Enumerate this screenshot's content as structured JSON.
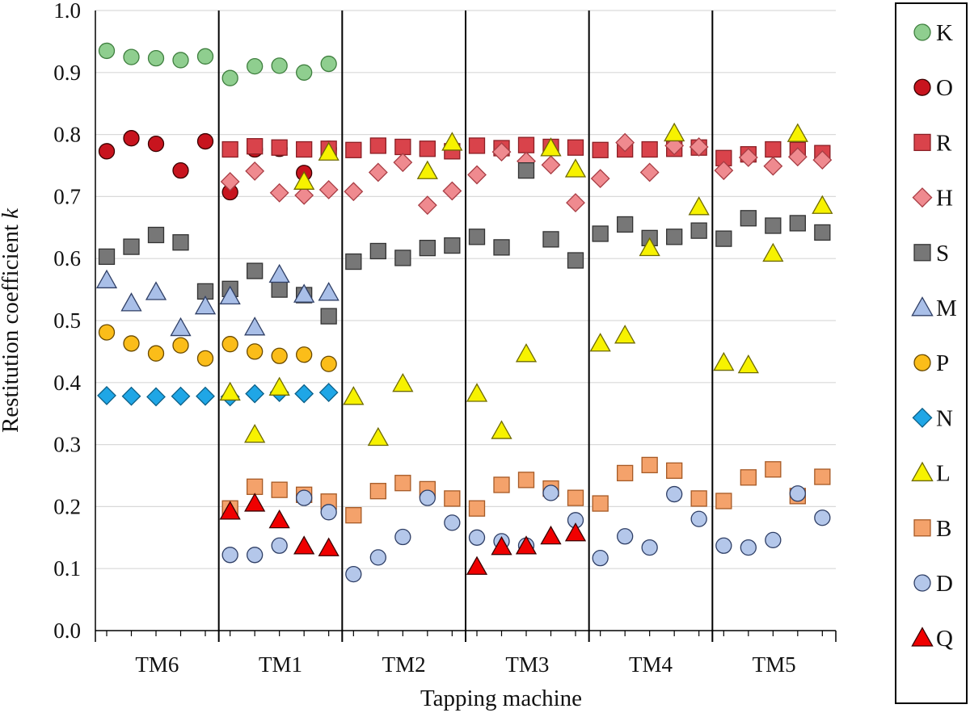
{
  "chart_data": {
    "type": "scatter",
    "title": "",
    "xlabel": "Tapping machine",
    "ylabel": "Restitution coefficient",
    "ylabel_italic": "k",
    "ylim": [
      0,
      1
    ],
    "yticks": [
      "0.0",
      "0.1",
      "0.2",
      "0.3",
      "0.4",
      "0.5",
      "0.6",
      "0.7",
      "0.8",
      "0.9",
      "1.0"
    ],
    "grid": "horizontal",
    "legend_position": "right",
    "categories": [
      "TM6",
      "TM1",
      "TM2",
      "TM3",
      "TM4",
      "TM5"
    ],
    "points_per_category": 5,
    "series": [
      {
        "name": "K",
        "marker": "circle",
        "fill": "#8fce8f",
        "stroke": "#3f7f3f",
        "values": [
          [
            0.935,
            0.925,
            0.923,
            0.92,
            0.926
          ],
          [
            0.891,
            0.91,
            0.911,
            0.9,
            0.914
          ],
          [],
          [],
          [],
          []
        ]
      },
      {
        "name": "O",
        "marker": "circle",
        "fill": "#c8141e",
        "stroke": "#3a0000",
        "values": [
          [
            0.773,
            0.794,
            0.785,
            0.742,
            0.789
          ],
          [
            0.707,
            0.776,
            0.777,
            0.738,
            0.777
          ],
          [],
          [],
          [],
          []
        ]
      },
      {
        "name": "R",
        "marker": "square",
        "fill": "#d9434b",
        "stroke": "#8a1f25",
        "values": [
          [],
          [
            0.776,
            0.781,
            0.779,
            0.776,
            0.777
          ],
          [
            0.775,
            0.782,
            0.78,
            0.777,
            0.773
          ],
          [
            0.782,
            0.778,
            0.783,
            0.78,
            0.779
          ],
          [
            0.775,
            0.776,
            0.776,
            0.777,
            0.779
          ],
          [
            0.762,
            0.768,
            0.776,
            0.775,
            0.77
          ]
        ]
      },
      {
        "name": "H",
        "marker": "diamond",
        "fill": "#ef8a8f",
        "stroke": "#a83d44",
        "values": [
          [],
          [
            0.724,
            0.741,
            0.706,
            0.702,
            0.711
          ],
          [
            0.708,
            0.739,
            0.755,
            0.686,
            0.709
          ],
          [
            0.735,
            0.772,
            0.757,
            0.751,
            0.69
          ],
          [
            0.729,
            0.787,
            0.739,
            0.782,
            0.78
          ],
          [
            0.742,
            0.763,
            0.749,
            0.764,
            0.759
          ]
        ]
      },
      {
        "name": "S",
        "marker": "square",
        "fill": "#777777",
        "stroke": "#333333",
        "values": [
          [
            0.603,
            0.619,
            0.638,
            0.626,
            0.547
          ],
          [
            0.551,
            0.58,
            0.55,
            0.541,
            0.507
          ],
          [
            0.595,
            0.612,
            0.601,
            0.617,
            0.621
          ],
          [
            0.635,
            0.618,
            0.742,
            0.631,
            0.597
          ],
          [
            0.64,
            0.655,
            0.633,
            0.635,
            0.645
          ],
          [
            0.632,
            0.665,
            0.653,
            0.657,
            0.642
          ]
        ]
      },
      {
        "name": "M",
        "marker": "triangle",
        "fill": "#a9bfe8",
        "stroke": "#2f3f66",
        "values": [
          [
            0.565,
            0.528,
            0.546,
            0.488,
            0.523
          ],
          [
            0.539,
            0.489,
            0.574,
            0.542,
            0.545
          ],
          [],
          [],
          [],
          []
        ]
      },
      {
        "name": "P",
        "marker": "circle",
        "fill": "#fbbd19",
        "stroke": "#6a4a00",
        "values": [
          [
            0.481,
            0.463,
            0.447,
            0.46,
            0.439
          ],
          [
            0.462,
            0.45,
            0.443,
            0.445,
            0.43
          ],
          [],
          [],
          [],
          []
        ]
      },
      {
        "name": "N",
        "marker": "diamond",
        "fill": "#1fa6e6",
        "stroke": "#0b5f87",
        "values": [
          [
            0.379,
            0.378,
            0.377,
            0.378,
            0.378
          ],
          [
            0.377,
            0.382,
            0.384,
            0.382,
            0.384
          ],
          [],
          [],
          [],
          []
        ]
      },
      {
        "name": "L",
        "marker": "triangle",
        "fill": "#f7f200",
        "stroke": "#6e6a00",
        "values": [
          [],
          [
            0.384,
            0.316,
            0.392,
            0.724,
            0.771
          ],
          [
            0.377,
            0.311,
            0.398,
            0.741,
            0.787
          ],
          [
            0.382,
            0.322,
            0.446,
            0.778,
            0.744
          ],
          [
            0.463,
            0.476,
            0.617,
            0.802,
            0.683
          ],
          [
            0.432,
            0.428,
            0.608,
            0.801,
            0.685
          ]
        ]
      },
      {
        "name": "B",
        "marker": "square",
        "fill": "#f4a26b",
        "stroke": "#a65a26",
        "values": [
          [],
          [
            0.197,
            0.232,
            0.227,
            0.219,
            0.208
          ],
          [
            0.186,
            0.225,
            0.238,
            0.228,
            0.213
          ],
          [
            0.197,
            0.235,
            0.243,
            0.229,
            0.214
          ],
          [
            0.205,
            0.254,
            0.267,
            0.258,
            0.213
          ],
          [
            0.209,
            0.247,
            0.26,
            0.217,
            0.248
          ]
        ]
      },
      {
        "name": "D",
        "marker": "circle",
        "fill": "#b4c7ea",
        "stroke": "#2f3f66",
        "values": [
          [],
          [
            0.122,
            0.122,
            0.137,
            0.214,
            0.191
          ],
          [
            0.091,
            0.118,
            0.151,
            0.214,
            0.174
          ],
          [
            0.15,
            0.144,
            0.137,
            0.222,
            0.178
          ],
          [
            0.117,
            0.152,
            0.134,
            0.22,
            0.18
          ],
          [
            0.137,
            0.134,
            0.146,
            0.221,
            0.182
          ]
        ]
      },
      {
        "name": "Q",
        "marker": "triangle",
        "fill": "#f00000",
        "stroke": "#3a0000",
        "values": [
          [],
          [
            0.192,
            0.205,
            0.178,
            0.136,
            0.133
          ],
          [],
          [
            0.103,
            0.135,
            0.136,
            0.152,
            0.157
          ],
          [],
          []
        ]
      }
    ]
  }
}
